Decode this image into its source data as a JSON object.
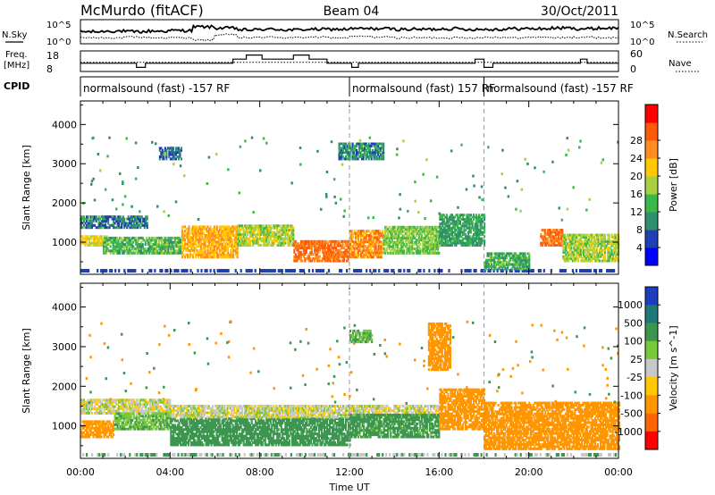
{
  "header": {
    "station": "McMurdo (fitACF)",
    "beam": "Beam 04",
    "date": "30/Oct/2011"
  },
  "noise_panel": {
    "left_label": "N.Sky",
    "right_label": "N.Search",
    "left_ticks": [
      "10^5",
      "10^0"
    ],
    "right_ticks": [
      "10^5",
      "10^0"
    ]
  },
  "freq_panel": {
    "left_label_1": "Freq.",
    "left_label_2": "[MHz]",
    "right_label": "Nave",
    "left_ticks": [
      "18",
      "8"
    ],
    "right_ticks": [
      "60",
      "0"
    ]
  },
  "cpid": {
    "label": "CPID",
    "segments": [
      {
        "text": "normalsound (fast) -157 RF",
        "start_hour": 0
      },
      {
        "text": "normalsound (fast) 157 RF",
        "start_hour": 12
      },
      {
        "text": "normalsound (fast) -157 RF",
        "start_hour": 18
      }
    ]
  },
  "x_axis": {
    "title": "Time UT",
    "tick_labels": [
      "00:00",
      "04:00",
      "08:00",
      "12:00",
      "16:00",
      "20:00",
      "00:00"
    ],
    "range_hours": [
      0,
      24
    ]
  },
  "panels": [
    {
      "id": "power",
      "ylabel": "Slant Range [km]",
      "y_ticks": [
        "1000",
        "2000",
        "3000",
        "4000"
      ],
      "colorbar_title": "Power [dB]",
      "colorbar_ticks": [
        "4",
        "8",
        "12",
        "16",
        "20",
        "24",
        "28"
      ],
      "colorbar_colors": [
        "#0000ff",
        "#1f3fb4",
        "#2f8f6f",
        "#3cb84a",
        "#a8d040",
        "#ffc800",
        "#ff8c1e",
        "#ff5a0a",
        "#ff0000"
      ]
    },
    {
      "id": "velocity",
      "ylabel": "Slant Range [km]",
      "y_ticks": [
        "1000",
        "2000",
        "3000",
        "4000"
      ],
      "colorbar_title": "Velocity [m s^-1]",
      "colorbar_ticks": [
        "1000",
        "500",
        "100",
        "25",
        "-25",
        "-100",
        "-500",
        "-1000"
      ],
      "colorbar_colors": [
        "#1e3cbe",
        "#1e7878",
        "#3c9650",
        "#78c83c",
        "#c8c8c8",
        "#ffc800",
        "#ff9600",
        "#ff6400",
        "#ff0000"
      ]
    }
  ],
  "chart_data": [
    {
      "type": "line",
      "name": "noise",
      "x_range": [
        0,
        24
      ],
      "series": [
        {
          "values_sky": [
            4.0,
            4.1,
            4.0,
            4.1,
            4.2,
            4.8,
            4.6,
            4.3,
            4.4,
            4.3,
            4.4,
            4.4,
            4.5,
            4.5,
            4.4,
            4.4,
            4.5,
            4.4,
            4.4,
            4.5,
            4.5,
            4.6,
            4.5,
            4.6
          ]
        },
        {
          "values_search": [
            3.0,
            3.0,
            3.1,
            3.0,
            3.0,
            2.6,
            3.5,
            3.0,
            3.1,
            3.0,
            3.1,
            3.0,
            3.2,
            3.1,
            3.0,
            3.0,
            3.0,
            3.0,
            3.1,
            3.0,
            3.1,
            3.0,
            3.1,
            3.0
          ]
        }
      ]
    },
    {
      "type": "line",
      "name": "frequency_and_nave",
      "x_range": [
        0,
        24
      ],
      "series": [
        {
          "freq_mhz": [
            [
              0,
              12
            ],
            [
              2.5,
              12
            ],
            [
              2.5,
              10
            ],
            [
              2.9,
              10
            ],
            [
              2.9,
              12
            ],
            [
              6.8,
              12
            ],
            [
              6.8,
              14
            ],
            [
              7.4,
              14
            ],
            [
              7.4,
              16
            ],
            [
              8.1,
              16
            ],
            [
              8.1,
              14
            ],
            [
              9.5,
              14
            ],
            [
              9.5,
              16
            ],
            [
              10.2,
              16
            ],
            [
              10.2,
              14
            ],
            [
              11.0,
              14
            ],
            [
              11.0,
              12
            ],
            [
              12.1,
              12
            ],
            [
              12.1,
              10
            ],
            [
              12.4,
              10
            ],
            [
              12.4,
              12
            ],
            [
              17.6,
              12
            ],
            [
              17.6,
              14
            ],
            [
              18.0,
              14
            ],
            [
              18.0,
              10
            ],
            [
              18.4,
              10
            ],
            [
              18.4,
              12
            ],
            [
              22.3,
              12
            ],
            [
              22.3,
              14
            ],
            [
              22.6,
              14
            ],
            [
              22.6,
              12
            ],
            [
              24,
              12
            ]
          ]
        },
        {
          "nave": [
            [
              0,
              27
            ],
            [
              24,
              27
            ]
          ]
        }
      ]
    },
    {
      "type": "heatmap",
      "name": "power",
      "x_range_hours": [
        0,
        24
      ],
      "y_range_km": [
        180,
        4600
      ],
      "value_unit": "dB",
      "scale_ticks": [
        4,
        8,
        12,
        16,
        20,
        24,
        28
      ],
      "regions": [
        {
          "t0": 0.0,
          "t1": 1.2,
          "r0": 900,
          "r1": 1150,
          "v": 20
        },
        {
          "t0": 0.0,
          "t1": 3.0,
          "r0": 1350,
          "r1": 1650,
          "v": 9
        },
        {
          "t0": 1.0,
          "t1": 4.5,
          "r0": 700,
          "r1": 1100,
          "v": 14
        },
        {
          "t0": 4.5,
          "t1": 7.0,
          "r0": 600,
          "r1": 1400,
          "v": 24
        },
        {
          "t0": 7.0,
          "t1": 9.5,
          "r0": 900,
          "r1": 1400,
          "v": 18
        },
        {
          "t0": 9.5,
          "t1": 12.0,
          "r0": 500,
          "r1": 1000,
          "v": 28
        },
        {
          "t0": 12.0,
          "t1": 13.5,
          "r0": 600,
          "r1": 1300,
          "v": 26
        },
        {
          "t0": 13.5,
          "t1": 16.0,
          "r0": 700,
          "r1": 1400,
          "v": 16
        },
        {
          "t0": 16.0,
          "t1": 18.0,
          "r0": 900,
          "r1": 1700,
          "v": 12
        },
        {
          "t0": 18.0,
          "t1": 20.0,
          "r0": 300,
          "r1": 700,
          "v": 13
        },
        {
          "t0": 20.5,
          "t1": 21.5,
          "r0": 900,
          "r1": 1300,
          "v": 28
        },
        {
          "t0": 21.5,
          "t1": 24.0,
          "r0": 500,
          "r1": 1200,
          "v": 18
        },
        {
          "t0": 11.5,
          "t1": 13.5,
          "r0": 3100,
          "r1": 3500,
          "v": 10
        },
        {
          "t0": 3.5,
          "t1": 4.5,
          "r0": 3100,
          "r1": 3400,
          "v": 8
        }
      ]
    },
    {
      "type": "heatmap",
      "name": "velocity",
      "x_range_hours": [
        0,
        24
      ],
      "y_range_km": [
        180,
        4600
      ],
      "value_unit": "m s^-1",
      "scale_ticks": [
        1000,
        500,
        100,
        25,
        -25,
        -100,
        -500,
        -1000
      ],
      "regions": [
        {
          "t0": 0.0,
          "t1": 1.5,
          "r0": 700,
          "r1": 1100,
          "v": -150
        },
        {
          "t0": 0.0,
          "t1": 4.0,
          "r0": 1300,
          "r1": 1650,
          "v": 0
        },
        {
          "t0": 1.5,
          "t1": 4.0,
          "r0": 900,
          "r1": 1300,
          "v": 80
        },
        {
          "t0": 4.0,
          "t1": 12.0,
          "r0": 500,
          "r1": 1200,
          "v": 200
        },
        {
          "t0": 4.0,
          "t1": 16.0,
          "r0": 1200,
          "r1": 1500,
          "v": 0
        },
        {
          "t0": 12.0,
          "t1": 16.0,
          "r0": 700,
          "r1": 1300,
          "v": 150
        },
        {
          "t0": 16.0,
          "t1": 18.0,
          "r0": 900,
          "r1": 1900,
          "v": -200
        },
        {
          "t0": 18.0,
          "t1": 24.0,
          "r0": 400,
          "r1": 1600,
          "v": -250
        },
        {
          "t0": 15.5,
          "t1": 16.5,
          "r0": 2400,
          "r1": 3600,
          "v": -200
        },
        {
          "t0": 12.0,
          "t1": 13.0,
          "r0": 3100,
          "r1": 3400,
          "v": 100
        }
      ]
    }
  ]
}
